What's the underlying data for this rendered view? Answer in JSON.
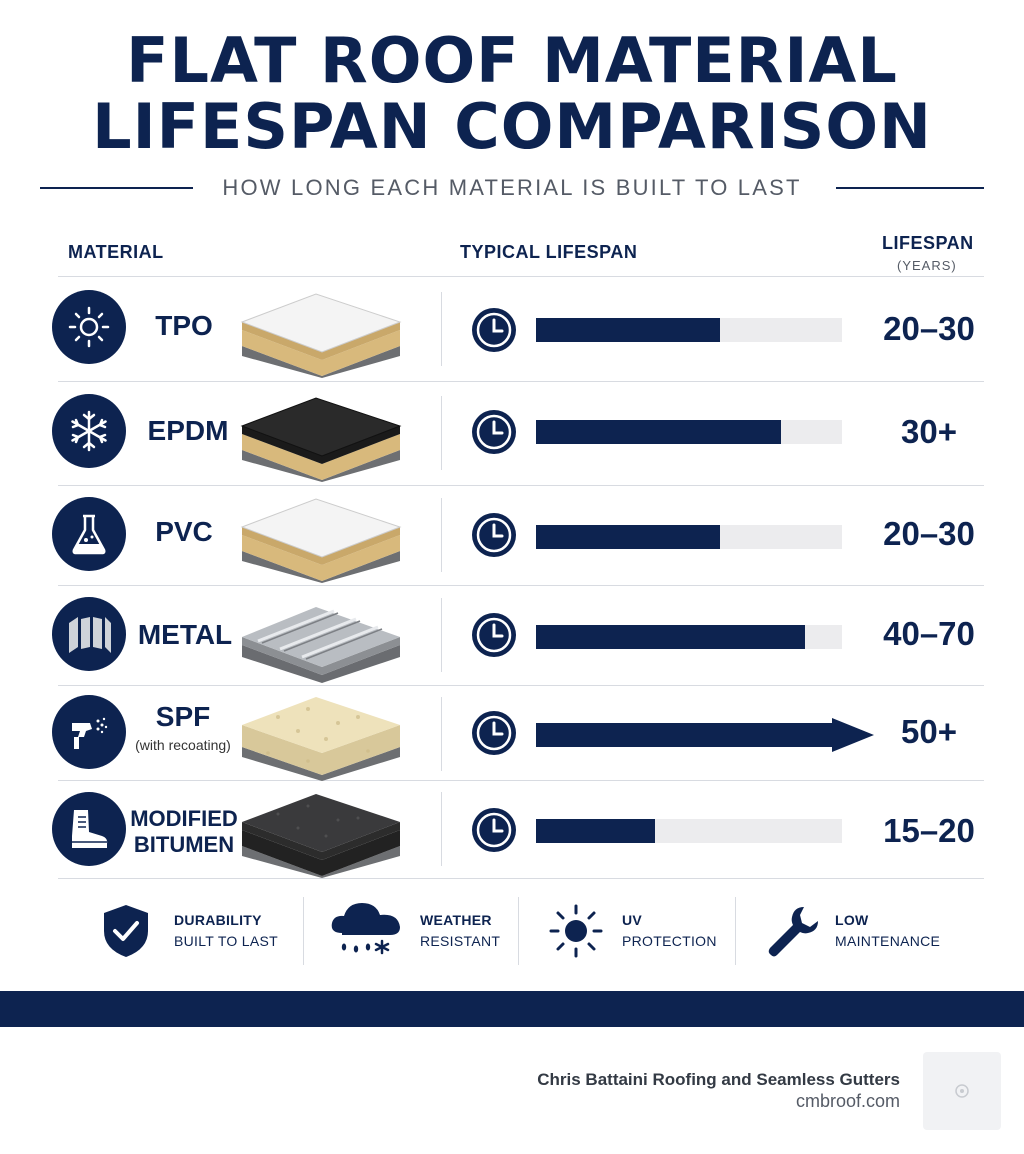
{
  "title_lines": [
    "FLAT ROOF MATERIAL",
    "LIFESPAN COMPARISON"
  ],
  "subtitle": "HOW LONG EACH MATERIAL IS BUILT TO LAST",
  "headers": {
    "material": "MATERIAL",
    "typical": "TYPICAL LIFESPAN",
    "lifespan": "LIFESPAN",
    "years": "(YEARS)"
  },
  "chart_data": {
    "type": "bar",
    "title": "FLAT ROOF MATERIAL LIFESPAN COMPARISON",
    "subtitle": "HOW LONG EACH MATERIAL IS BUILT TO LAST",
    "ylabel": "LIFESPAN (YEARS)",
    "categories": [
      "TPO",
      "EPDM",
      "PVC",
      "METAL",
      "SPF",
      "MODIFIED BITUMEN"
    ],
    "bar_fill_fraction": [
      0.6,
      0.8,
      0.6,
      0.88,
      1.0,
      0.39
    ],
    "arrow_marker": [
      false,
      false,
      false,
      false,
      true,
      false
    ],
    "value_labels": [
      "20–30",
      "30+",
      "20–30",
      "40–70",
      "50+",
      "15–20"
    ],
    "bar_color": "#0d2350",
    "track_color": "#ececee"
  },
  "materials": [
    {
      "name": "TPO",
      "note": "",
      "icon": "sun-icon",
      "swatch": "white-membrane"
    },
    {
      "name": "EPDM",
      "note": "",
      "icon": "snowflake-icon",
      "swatch": "black-membrane"
    },
    {
      "name": "PVC",
      "note": "",
      "icon": "flask-icon",
      "swatch": "white-membrane"
    },
    {
      "name": "METAL",
      "note": "",
      "icon": "metal-panel-icon",
      "swatch": "metal-panel"
    },
    {
      "name": "SPF",
      "note": "(with recoating)",
      "icon": "spray-gun-icon",
      "swatch": "foam"
    },
    {
      "name_lines": [
        "MODIFIED",
        "BITUMEN"
      ],
      "note": "",
      "icon": "boot-icon",
      "swatch": "granular-bitumen"
    }
  ],
  "features": [
    {
      "title": "DURABILITY",
      "sub": "BUILT TO LAST",
      "icon": "shield-check-icon"
    },
    {
      "title": "WEATHER",
      "sub": "RESISTANT",
      "icon": "storm-cloud-icon"
    },
    {
      "title": "UV",
      "sub": "PROTECTION",
      "icon": "sun-icon"
    },
    {
      "title": "LOW",
      "sub": "MAINTENANCE",
      "icon": "wrench-icon"
    }
  ],
  "footer": {
    "company": "Chris Battaini Roofing and Seamless Gutters",
    "site": "cmbroof.com"
  },
  "colors": {
    "navy": "#0d2350",
    "gray_text": "#555b66",
    "divider": "#d8dbe1"
  }
}
